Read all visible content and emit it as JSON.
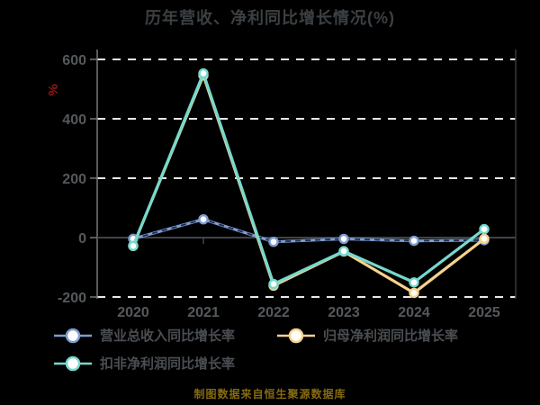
{
  "title": "历年营收、净利同比增长情况(%)",
  "y_axis_label": "%",
  "footer": "制图数据来自恒生聚源数据库",
  "colors": {
    "background": "#000000",
    "title_text": "#3c4043",
    "tick_label": "#55595c",
    "y_axis_unit": "#991616",
    "gridline": "#e8e8e8",
    "zero_axis": "#3f4449",
    "left_spine": "#74787c",
    "right_spine": "#35393c",
    "legend_text": "#4a4e52",
    "footer_text": "#856a10",
    "blue_dash_overlay": "#1b2c4f",
    "marker_fill": "#ffffff"
  },
  "chart_data": {
    "type": "line",
    "title": "历年营收、净利同比增长情况(%)",
    "ylabel": "%",
    "categories": [
      "2020",
      "2021",
      "2022",
      "2023",
      "2024",
      "2025"
    ],
    "series": [
      {
        "name": "营业总收入同比增长率",
        "color": "#7e9ccf",
        "dash_overlay": true,
        "values": [
          -4.0,
          61.5,
          -14.2,
          -4.3,
          -10.9,
          -8.8
        ]
      },
      {
        "name": "归母净利润同比增长率",
        "color": "#f5d28e",
        "dash_overlay": false,
        "values": [
          -27.5,
          546.4,
          -161.9,
          -46.8,
          -186.2,
          -4.1
        ]
      },
      {
        "name": "扣非净利润同比增长率",
        "color": "#76d8cd",
        "dash_overlay": false,
        "values": [
          -28.3,
          552.8,
          -156.3,
          -45.6,
          -150.8,
          28.4
        ]
      }
    ],
    "yticks": [
      600,
      400,
      200,
      0,
      -200
    ],
    "ylim": [
      -230,
      640
    ],
    "grid": "horizontal-dashed-white",
    "legend_position": "bottom-left",
    "marker": "circle-white-fill"
  }
}
